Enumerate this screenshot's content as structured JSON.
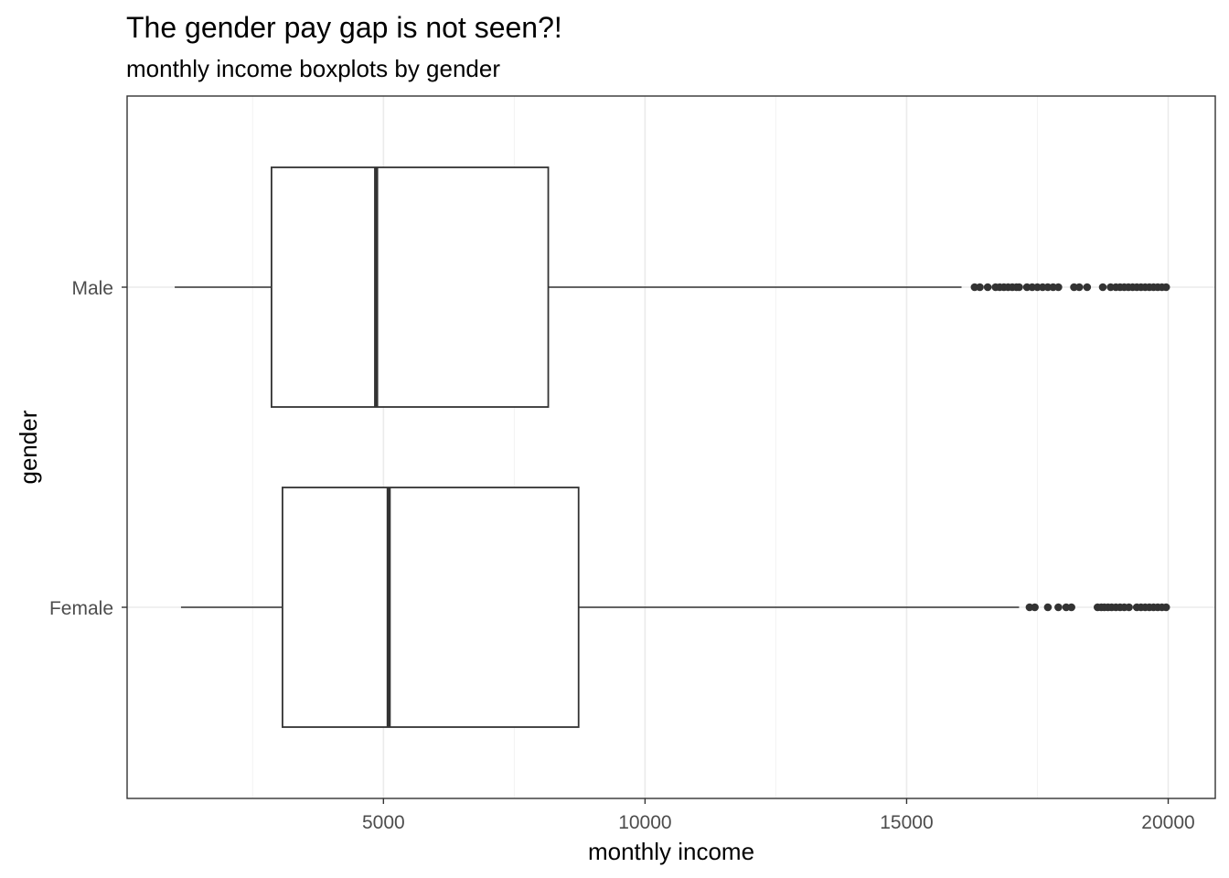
{
  "chart_data": {
    "type": "boxplot",
    "orientation": "horizontal",
    "title": "The gender pay gap is not seen?!",
    "subtitle": "monthly income boxplots by gender",
    "xlabel": "monthly income",
    "ylabel": "gender",
    "xlim": [
      100,
      20900
    ],
    "x_ticks": [
      5000,
      10000,
      15000,
      20000
    ],
    "x_tick_labels": [
      "5000",
      "10000",
      "15000",
      "20000"
    ],
    "grid": true,
    "legend": "none",
    "colors": {
      "box_line": "#333333",
      "box_fill": "#ffffff",
      "outlier": "#333333",
      "grid": "#ebebeb",
      "panel_border": "#333333"
    },
    "categories": [
      "Female",
      "Male"
    ],
    "series": [
      {
        "category": "Female",
        "whisker_low": 1130,
        "q1": 3070,
        "median": 5100,
        "q3": 8730,
        "whisker_high": 17150,
        "outliers": [
          17350,
          17450,
          17700,
          17900,
          18050,
          18150,
          18650,
          18720,
          18780,
          18850,
          18920,
          19000,
          19080,
          19160,
          19250,
          19400,
          19480,
          19560,
          19640,
          19720,
          19800,
          19880,
          19960
        ]
      },
      {
        "category": "Male",
        "whisker_low": 1010,
        "q1": 2860,
        "median": 4860,
        "q3": 8150,
        "whisker_high": 16050,
        "outliers": [
          16300,
          16400,
          16550,
          16700,
          16780,
          16860,
          16940,
          17020,
          17100,
          17150,
          17300,
          17400,
          17500,
          17600,
          17700,
          17800,
          17900,
          18200,
          18300,
          18450,
          18750,
          18900,
          19000,
          19080,
          19160,
          19240,
          19320,
          19400,
          19480,
          19560,
          19640,
          19720,
          19800,
          19880,
          19960
        ]
      }
    ]
  }
}
